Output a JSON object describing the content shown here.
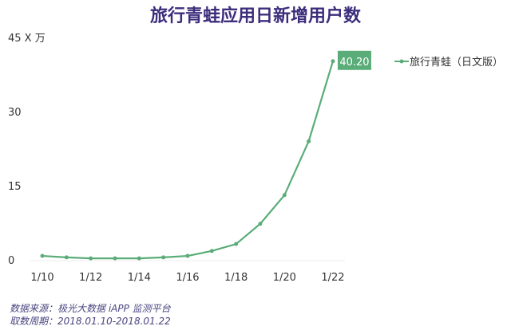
{
  "chart_data": {
    "type": "line",
    "title": "旅行青蛙应用日新增用户数",
    "unit_label": "X 万",
    "categories": [
      "1/10",
      "1/11",
      "1/12",
      "1/13",
      "1/14",
      "1/15",
      "1/16",
      "1/17",
      "1/18",
      "1/19",
      "1/20",
      "1/21",
      "1/22"
    ],
    "x_tick_labels": [
      "1/10",
      "1/12",
      "1/14",
      "1/16",
      "1/18",
      "1/20",
      "1/22"
    ],
    "y_ticks": [
      0,
      15,
      30,
      45
    ],
    "ylim": [
      0,
      45
    ],
    "series": [
      {
        "name": "旅行青蛙（日文版）",
        "color": "#5aac78",
        "values": [
          0.8,
          0.5,
          0.3,
          0.3,
          0.3,
          0.5,
          0.8,
          1.8,
          3.2,
          7.3,
          13.1,
          24.0,
          40.2
        ]
      }
    ],
    "data_label": "40.20",
    "legend": "top-right",
    "grid": false
  },
  "footer": {
    "source": "数据来源：极光大数据 iAPP 监测平台",
    "period": "取数周期：2018.01.10-2018.01.22"
  }
}
